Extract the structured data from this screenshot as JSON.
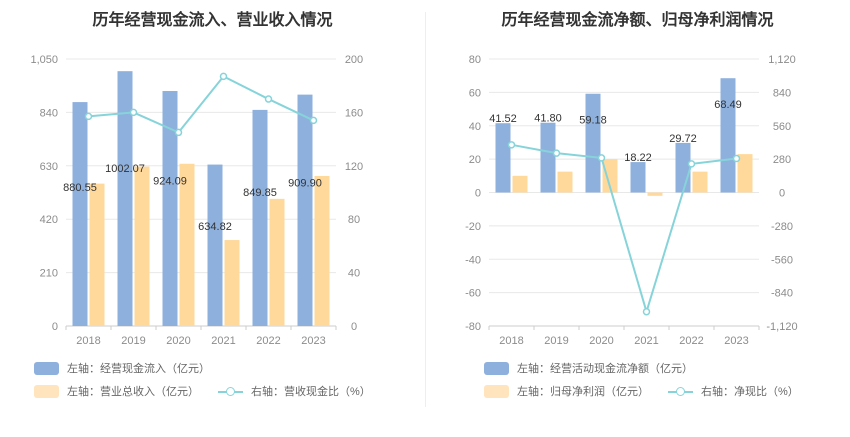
{
  "colors": {
    "blue": "#8eb0dd",
    "orange": "#ffd99b",
    "line": "#86d4da",
    "grid": "#e8e8e8"
  },
  "charts": {
    "left": {
      "title": "历年经营现金流入、营业收入情况",
      "legend": {
        "bar1": "左轴：经营现金流入（亿元）",
        "bar2": "左轴：营业总收入（亿元）",
        "line": "右轴：营收现金比（%）"
      }
    },
    "right": {
      "title": "历年经营现金流净额、归母净利润情况",
      "legend": {
        "bar1": "左轴：经营活动现金流净额（亿元）",
        "bar2": "左轴：归母净利润（亿元）",
        "line": "右轴：净现比（%）"
      }
    }
  },
  "chart_data": [
    {
      "type": "bar",
      "title": "历年经营现金流入、营业收入情况",
      "categories": [
        "2018",
        "2019",
        "2020",
        "2021",
        "2022",
        "2023"
      ],
      "series": [
        {
          "name": "左轴：经营现金流入（亿元）",
          "axis": "left",
          "type": "bar",
          "values": [
            880.55,
            1002.07,
            924.09,
            634.82,
            849.85,
            909.9
          ],
          "labels": [
            "880.55",
            "1002.07",
            "924.09",
            "634.82",
            "849.85",
            "909.90"
          ]
        },
        {
          "name": "左轴：营业总收入（亿元）",
          "axis": "left",
          "type": "bar",
          "values": [
            560,
            627,
            638,
            338,
            500,
            590
          ]
        },
        {
          "name": "右轴：营收现金比（%）",
          "axis": "right",
          "type": "line",
          "values": [
            157,
            160,
            145,
            187,
            170,
            154
          ]
        }
      ],
      "y_left": {
        "ticks": [
          "0",
          "210",
          "420",
          "630",
          "840",
          "1,050"
        ],
        "min": 0,
        "max": 1050
      },
      "y_right": {
        "ticks": [
          "0",
          "40",
          "80",
          "120",
          "160",
          "200"
        ],
        "min": 0,
        "max": 200
      },
      "grid": true,
      "legend_position": "bottom"
    },
    {
      "type": "bar",
      "title": "历年经营现金流净额、归母净利润情况",
      "categories": [
        "2018",
        "2019",
        "2020",
        "2021",
        "2022",
        "2023"
      ],
      "series": [
        {
          "name": "左轴：经营活动现金流净额（亿元）",
          "axis": "left",
          "type": "bar",
          "values": [
            41.52,
            41.8,
            59.18,
            18.22,
            29.72,
            68.49
          ],
          "labels": [
            "41.52",
            "41.80",
            "59.18",
            "18.22",
            "29.72",
            "68.49"
          ]
        },
        {
          "name": "左轴：归母净利润（亿元）",
          "axis": "left",
          "type": "bar",
          "values": [
            10,
            12.5,
            20,
            -2,
            12.5,
            23
          ]
        },
        {
          "name": "右轴：净现比（%）",
          "axis": "right",
          "type": "line",
          "values": [
            400,
            330,
            290,
            -1000,
            240,
            285
          ]
        }
      ],
      "y_left": {
        "ticks": [
          "-80",
          "-60",
          "-40",
          "-20",
          "0",
          "20",
          "40",
          "60",
          "80"
        ],
        "min": -80,
        "max": 80
      },
      "y_right": {
        "ticks": [
          "-1,120",
          "-840",
          "-560",
          "-280",
          "0",
          "280",
          "560",
          "840",
          "1,120"
        ],
        "min": -1120,
        "max": 1120
      },
      "grid": true,
      "legend_position": "bottom"
    }
  ]
}
